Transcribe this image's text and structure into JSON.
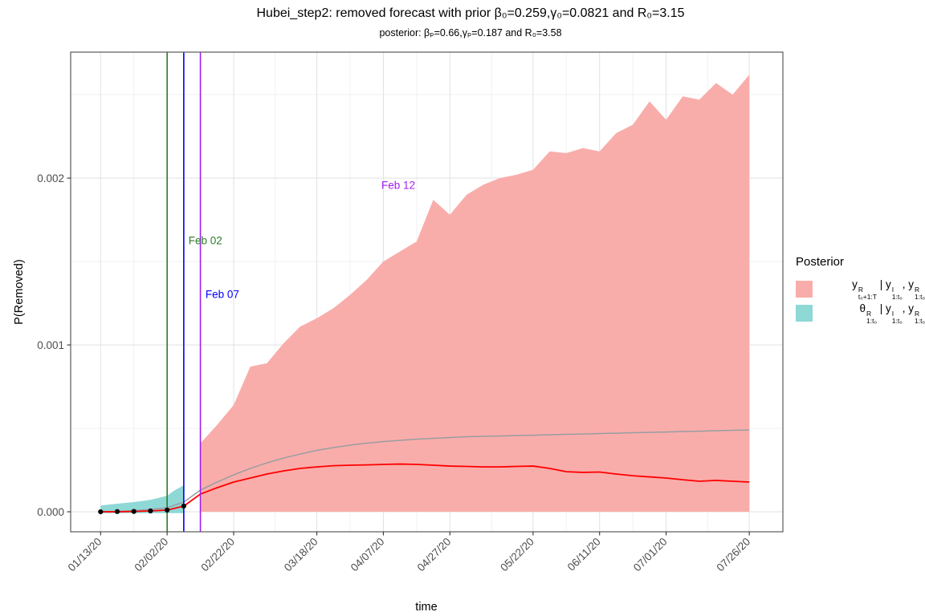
{
  "title": "Hubei_step2: removed forecast with prior β₀=0.259,γ₀=0.0821 and R₀=3.15",
  "subtitle": "posterior: βₚ=0.66,γₚ=0.187 and R₀=3.58",
  "legend": {
    "title": "Posterior",
    "items": [
      {
        "swatch_color": "#F9ADAA",
        "parts": [
          {
            "b": "y",
            "sup": "R",
            "sub": "t₀+1:T"
          },
          {
            "sep": " | "
          },
          {
            "b": "y",
            "sup": "I",
            "sub": "1:t₀"
          },
          {
            "sep": ", "
          },
          {
            "b": "y",
            "sup": "R",
            "sub": "1:t₀"
          }
        ]
      },
      {
        "swatch_color": "#8ED8D6",
        "parts": [
          {
            "b": "θ",
            "sup": "R",
            "sub": "1:t₀"
          },
          {
            "sep": " | "
          },
          {
            "b": "y",
            "sup": "I",
            "sub": "1:t₀"
          },
          {
            "sep": ", "
          },
          {
            "b": "y",
            "sup": "R",
            "sub": "1:t₀"
          }
        ]
      }
    ]
  },
  "colors": {
    "forecast_fill": "#F9ADAA",
    "theta_fill": "#8ED8D6",
    "red_line": "#FF0000",
    "gray_line": "#999DA1",
    "vline_green": "#2B7A2B",
    "vline_blue": "#0000FF",
    "vline_purple": "#A020F0",
    "dot": "#000000",
    "grid_major": "#E4E4E4",
    "grid_minor": "#F1F1F1",
    "panel_border": "#595959",
    "tick_text": "#4D4D4D",
    "axis_tick": "#333333"
  },
  "chart_data": {
    "type": "area",
    "title": "Hubei_step2: removed forecast with prior β₀=0.259,γ₀=0.0821 and R₀=3.15",
    "subtitle": "posterior: βₚ=0.66,γₚ=0.187 and R₀=3.58",
    "xlabel": "time",
    "ylabel": "P(Removed)",
    "x_unit_days_since": "01/13/20",
    "xlim_days": [
      -9,
      205.1
    ],
    "ylim": [
      -0.00012,
      0.002755
    ],
    "x_ticks": {
      "days": [
        0,
        20,
        40,
        65,
        85,
        105,
        130,
        150,
        170,
        195
      ],
      "labels": [
        "01/13/20",
        "02/02/20",
        "02/22/20",
        "03/18/20",
        "04/07/20",
        "04/27/20",
        "05/22/20",
        "06/11/20",
        "07/01/20",
        "07/26/20"
      ]
    },
    "y_ticks": {
      "values": [
        0,
        0.001,
        0.002
      ],
      "labels": [
        "0.000",
        "0.001",
        "0.002"
      ],
      "minor": [
        0.0005,
        0.0015,
        0.0025
      ]
    },
    "observed_points": {
      "days": [
        0,
        5,
        10,
        15,
        20,
        25
      ],
      "values": [
        0,
        1e-06,
        2e-06,
        5e-06,
        1e-05,
        3.4e-05
      ]
    },
    "theta_ribbon": {
      "days": [
        0,
        5,
        10,
        15,
        20,
        22,
        25
      ],
      "upper": [
        3.8e-05,
        4.8e-05,
        5.8e-05,
        7.2e-05,
        9.6e-05,
        0.000125,
        0.000159
      ],
      "lower": -8e-06
    },
    "forecast_ribbon": {
      "days": [
        30,
        35,
        40,
        45,
        50,
        55,
        60,
        65,
        70,
        75,
        80,
        85,
        90,
        95,
        100,
        105,
        110,
        115,
        120,
        125,
        130,
        135,
        140,
        145,
        150,
        155,
        160,
        165,
        170,
        175,
        180,
        185,
        190,
        195
      ],
      "upper": [
        0.00041,
        0.00052,
        0.00064,
        0.00087,
        0.00089,
        0.00101,
        0.00111,
        0.00116,
        0.00122,
        0.0013,
        0.00139,
        0.0015,
        0.00156,
        0.00162,
        0.00187,
        0.00178,
        0.0019,
        0.00196,
        0.002,
        0.00202,
        0.00205,
        0.00216,
        0.00215,
        0.00218,
        0.00216,
        0.00227,
        0.00232,
        0.00246,
        0.00235,
        0.00249,
        0.00247,
        0.00257,
        0.0025,
        0.00262
      ],
      "lower": 0
    },
    "red_line": {
      "days": [
        0,
        5,
        10,
        15,
        20,
        25,
        30,
        35,
        40,
        45,
        50,
        55,
        60,
        65,
        70,
        75,
        80,
        85,
        90,
        95,
        100,
        105,
        110,
        115,
        120,
        125,
        130,
        135,
        140,
        145,
        150,
        155,
        160,
        165,
        170,
        175,
        180,
        185,
        190,
        195
      ],
      "values": [
        0,
        0,
        2e-06,
        5e-06,
        1e-05,
        3.4e-05,
        0.000106,
        0.000144,
        0.000178,
        0.000202,
        0.000226,
        0.000245,
        0.00026,
        0.000269,
        0.000276,
        0.000279,
        0.000281,
        0.000284,
        0.000286,
        0.000284,
        0.000279,
        0.000274,
        0.000272,
        0.000269,
        0.000269,
        0.000272,
        0.000274,
        0.00026,
        0.00024,
        0.000236,
        0.000238,
        0.000226,
        0.000216,
        0.000209,
        0.000202,
        0.000192,
        0.000183,
        0.000188,
        0.000183,
        0.000178
      ]
    },
    "gray_line": {
      "days": [
        0,
        5,
        10,
        15,
        20,
        25,
        30,
        35,
        40,
        45,
        50,
        55,
        60,
        65,
        70,
        75,
        80,
        85,
        90,
        95,
        100,
        105,
        110,
        115,
        120,
        125,
        130,
        135,
        140,
        145,
        150,
        155,
        160,
        165,
        170,
        175,
        180,
        185,
        190,
        195
      ],
      "values": [
        0,
        2e-06,
        7e-06,
        1.4e-05,
        2.4e-05,
        5.8e-05,
        0.00013,
        0.000178,
        0.000221,
        0.00026,
        0.000293,
        0.000322,
        0.000346,
        0.000368,
        0.000385,
        0.000399,
        0.000411,
        0.000421,
        0.000428,
        0.000435,
        0.00044,
        0.000445,
        0.00045,
        0.000452,
        0.000454,
        0.000457,
        0.000459,
        0.000462,
        0.000464,
        0.000466,
        0.000469,
        0.000471,
        0.000474,
        0.000476,
        0.000478,
        0.000481,
        0.000483,
        0.000486,
        0.000488,
        0.00049
      ]
    },
    "vlines": [
      {
        "label": "Feb 02",
        "day": 20,
        "color_key": "vline_green",
        "label_day": 31.5,
        "label_value": 0.001625
      },
      {
        "label": "Feb 07",
        "day": 25,
        "color_key": "vline_blue",
        "label_day": 36.6,
        "label_value": 0.001303
      },
      {
        "label": "Feb 12",
        "day": 30,
        "color_key": "vline_purple",
        "label_day": 89.5,
        "label_value": 0.001957
      }
    ],
    "legend_position": "right",
    "grid": "major+minor"
  }
}
